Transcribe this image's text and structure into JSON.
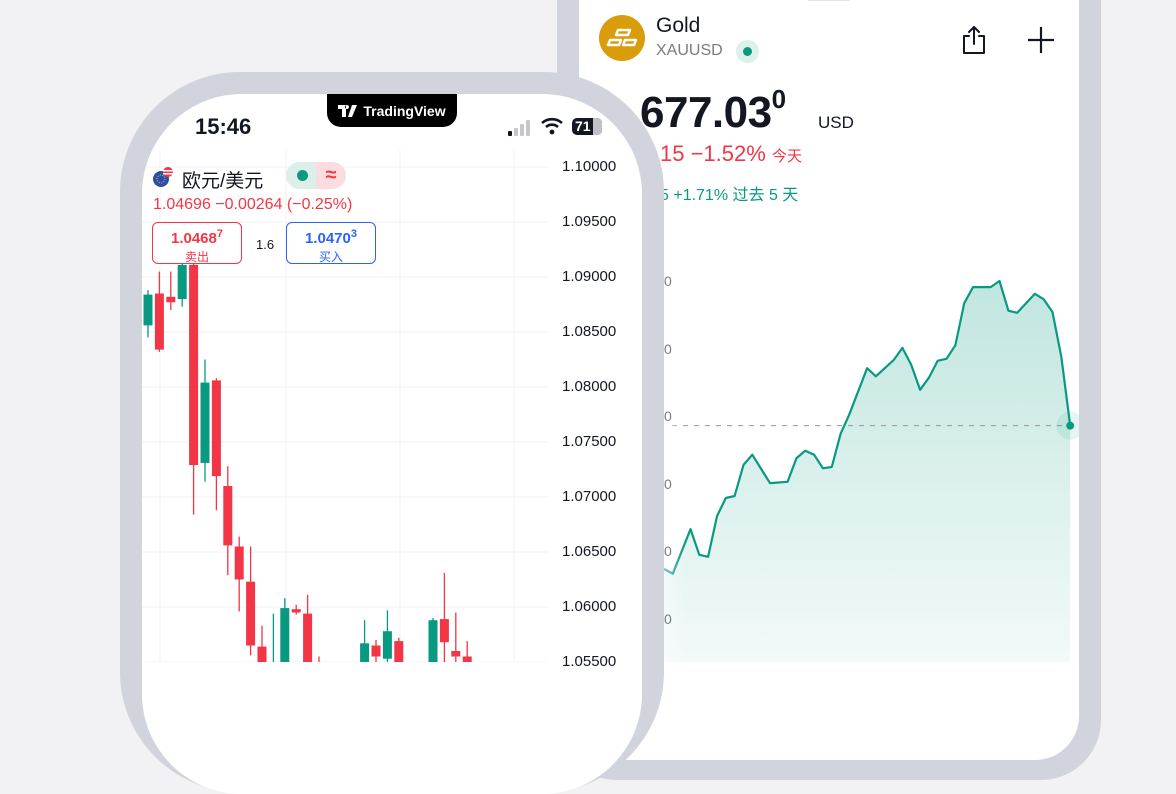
{
  "gold_screen": {
    "name": "Gold",
    "symbol": "XAUUSD",
    "market_status_color": "#089981",
    "price_main": "677.03",
    "price_super": "0",
    "currency": "USD",
    "change_today": "15 −1.52%",
    "change_today_label": "今天",
    "change_5d": "5 +1.71%",
    "change_5d_label": "过去 5 天",
    "icons": {
      "logo": "gold-bars-icon",
      "share": "share-icon",
      "add": "plus-icon"
    },
    "y_tick_labels": [
      "0",
      "0",
      "0",
      "0",
      "0",
      "0"
    ]
  },
  "forex_screen": {
    "brand": "TradingView",
    "status_time": "15:46",
    "battery": "71",
    "pair": "欧元/美元",
    "quote": "1.04696  −0.00264 (−0.25%)",
    "sell": {
      "price": "1.0468",
      "price_super": "7",
      "label": "卖出"
    },
    "buy": {
      "price": "1.0470",
      "price_super": "3",
      "label": "买入"
    },
    "spread": "1.6",
    "delayed_symbol": "≈"
  },
  "colors": {
    "up": "#089981",
    "down": "#f23645",
    "buy": "#2962ff"
  },
  "chart_data": [
    {
      "type": "candlestick",
      "title": "",
      "y_tick_labels": [
        "1.10000",
        "1.09500",
        "1.09000",
        "1.08500",
        "1.08000",
        "1.07500",
        "1.07000",
        "1.06500",
        "1.06000",
        "1.05500"
      ],
      "ylim": [
        1.053,
        1.102
      ],
      "candles": [
        {
          "i": 0,
          "o": 1.0856,
          "h": 1.0888,
          "l": 1.0845,
          "c": 1.0884
        },
        {
          "i": 1,
          "o": 1.0885,
          "h": 1.0905,
          "l": 1.0832,
          "c": 1.0834
        },
        {
          "i": 2,
          "o": 1.0882,
          "h": 1.0905,
          "l": 1.087,
          "c": 1.0877
        },
        {
          "i": 3,
          "o": 1.088,
          "h": 1.0915,
          "l": 1.0873,
          "c": 1.0911
        },
        {
          "i": 4,
          "o": 1.0911,
          "h": 1.0915,
          "l": 1.0684,
          "c": 1.0729
        },
        {
          "i": 5,
          "o": 1.0731,
          "h": 1.0825,
          "l": 1.0714,
          "c": 1.0804
        },
        {
          "i": 6,
          "o": 1.0806,
          "h": 1.0808,
          "l": 1.0688,
          "c": 1.0719
        },
        {
          "i": 7,
          "o": 1.071,
          "h": 1.0728,
          "l": 1.0629,
          "c": 1.0656
        },
        {
          "i": 8,
          "o": 1.0655,
          "h": 1.0664,
          "l": 1.0596,
          "c": 1.0625
        },
        {
          "i": 9,
          "o": 1.0623,
          "h": 1.0655,
          "l": 1.0556,
          "c": 1.0565
        },
        {
          "i": 10,
          "o": 1.0564,
          "h": 1.0583,
          "l": 1.053,
          "c": 1.0534
        },
        {
          "i": 11,
          "o": 1.053,
          "h": 1.0594,
          "l": 1.0525,
          "c": 1.0545
        },
        {
          "i": 12,
          "o": 1.0534,
          "h": 1.0608,
          "l": 1.053,
          "c": 1.0599
        },
        {
          "i": 13,
          "o": 1.0598,
          "h": 1.0602,
          "l": 1.0593,
          "c": 1.0595
        },
        {
          "i": 14,
          "o": 1.0594,
          "h": 1.0611,
          "l": 1.053,
          "c": 1.0534
        },
        {
          "i": 15,
          "o": 1.054,
          "h": 1.0555,
          "l": 1.053,
          "c": 1.0535
        },
        {
          "i": 19,
          "o": 1.0534,
          "h": 1.0588,
          "l": 1.053,
          "c": 1.0567
        },
        {
          "i": 20,
          "o": 1.0565,
          "h": 1.057,
          "l": 1.054,
          "c": 1.0555
        },
        {
          "i": 21,
          "o": 1.0553,
          "h": 1.0597,
          "l": 1.054,
          "c": 1.0578
        },
        {
          "i": 22,
          "o": 1.0569,
          "h": 1.0572,
          "l": 1.053,
          "c": 1.0534
        },
        {
          "i": 25,
          "o": 1.0534,
          "h": 1.059,
          "l": 1.053,
          "c": 1.0588
        },
        {
          "i": 26,
          "o": 1.0589,
          "h": 1.0631,
          "l": 1.053,
          "c": 1.0568
        },
        {
          "i": 27,
          "o": 1.056,
          "h": 1.0595,
          "l": 1.053,
          "c": 1.0555
        },
        {
          "i": 28,
          "o": 1.0555,
          "h": 1.0569,
          "l": 1.053,
          "c": 1.0534
        }
      ]
    },
    {
      "type": "area",
      "title": "",
      "grid": false,
      "reference_line": "dashed previous close",
      "x": [
        0,
        1,
        3,
        4,
        5,
        6,
        7,
        8,
        9,
        10,
        12,
        14,
        15,
        16,
        17,
        18,
        19,
        20,
        21,
        23,
        24,
        26,
        27,
        28,
        29,
        30,
        31,
        32,
        33,
        34,
        35,
        37,
        38,
        39,
        40,
        42,
        43,
        44,
        45,
        46
      ],
      "values": [
        0.74,
        0.67,
        1.33,
        0.95,
        0.92,
        1.52,
        1.79,
        1.82,
        2.28,
        2.43,
        2.01,
        2.03,
        2.38,
        2.49,
        2.43,
        2.23,
        2.25,
        2.74,
        3.03,
        3.71,
        3.59,
        3.83,
        4.01,
        3.76,
        3.39,
        3.57,
        3.82,
        3.85,
        4.05,
        4.67,
        4.91,
        4.91,
        5.0,
        4.56,
        4.53,
        4.81,
        4.73,
        4.54,
        3.88,
        2.86
      ]
    }
  ]
}
